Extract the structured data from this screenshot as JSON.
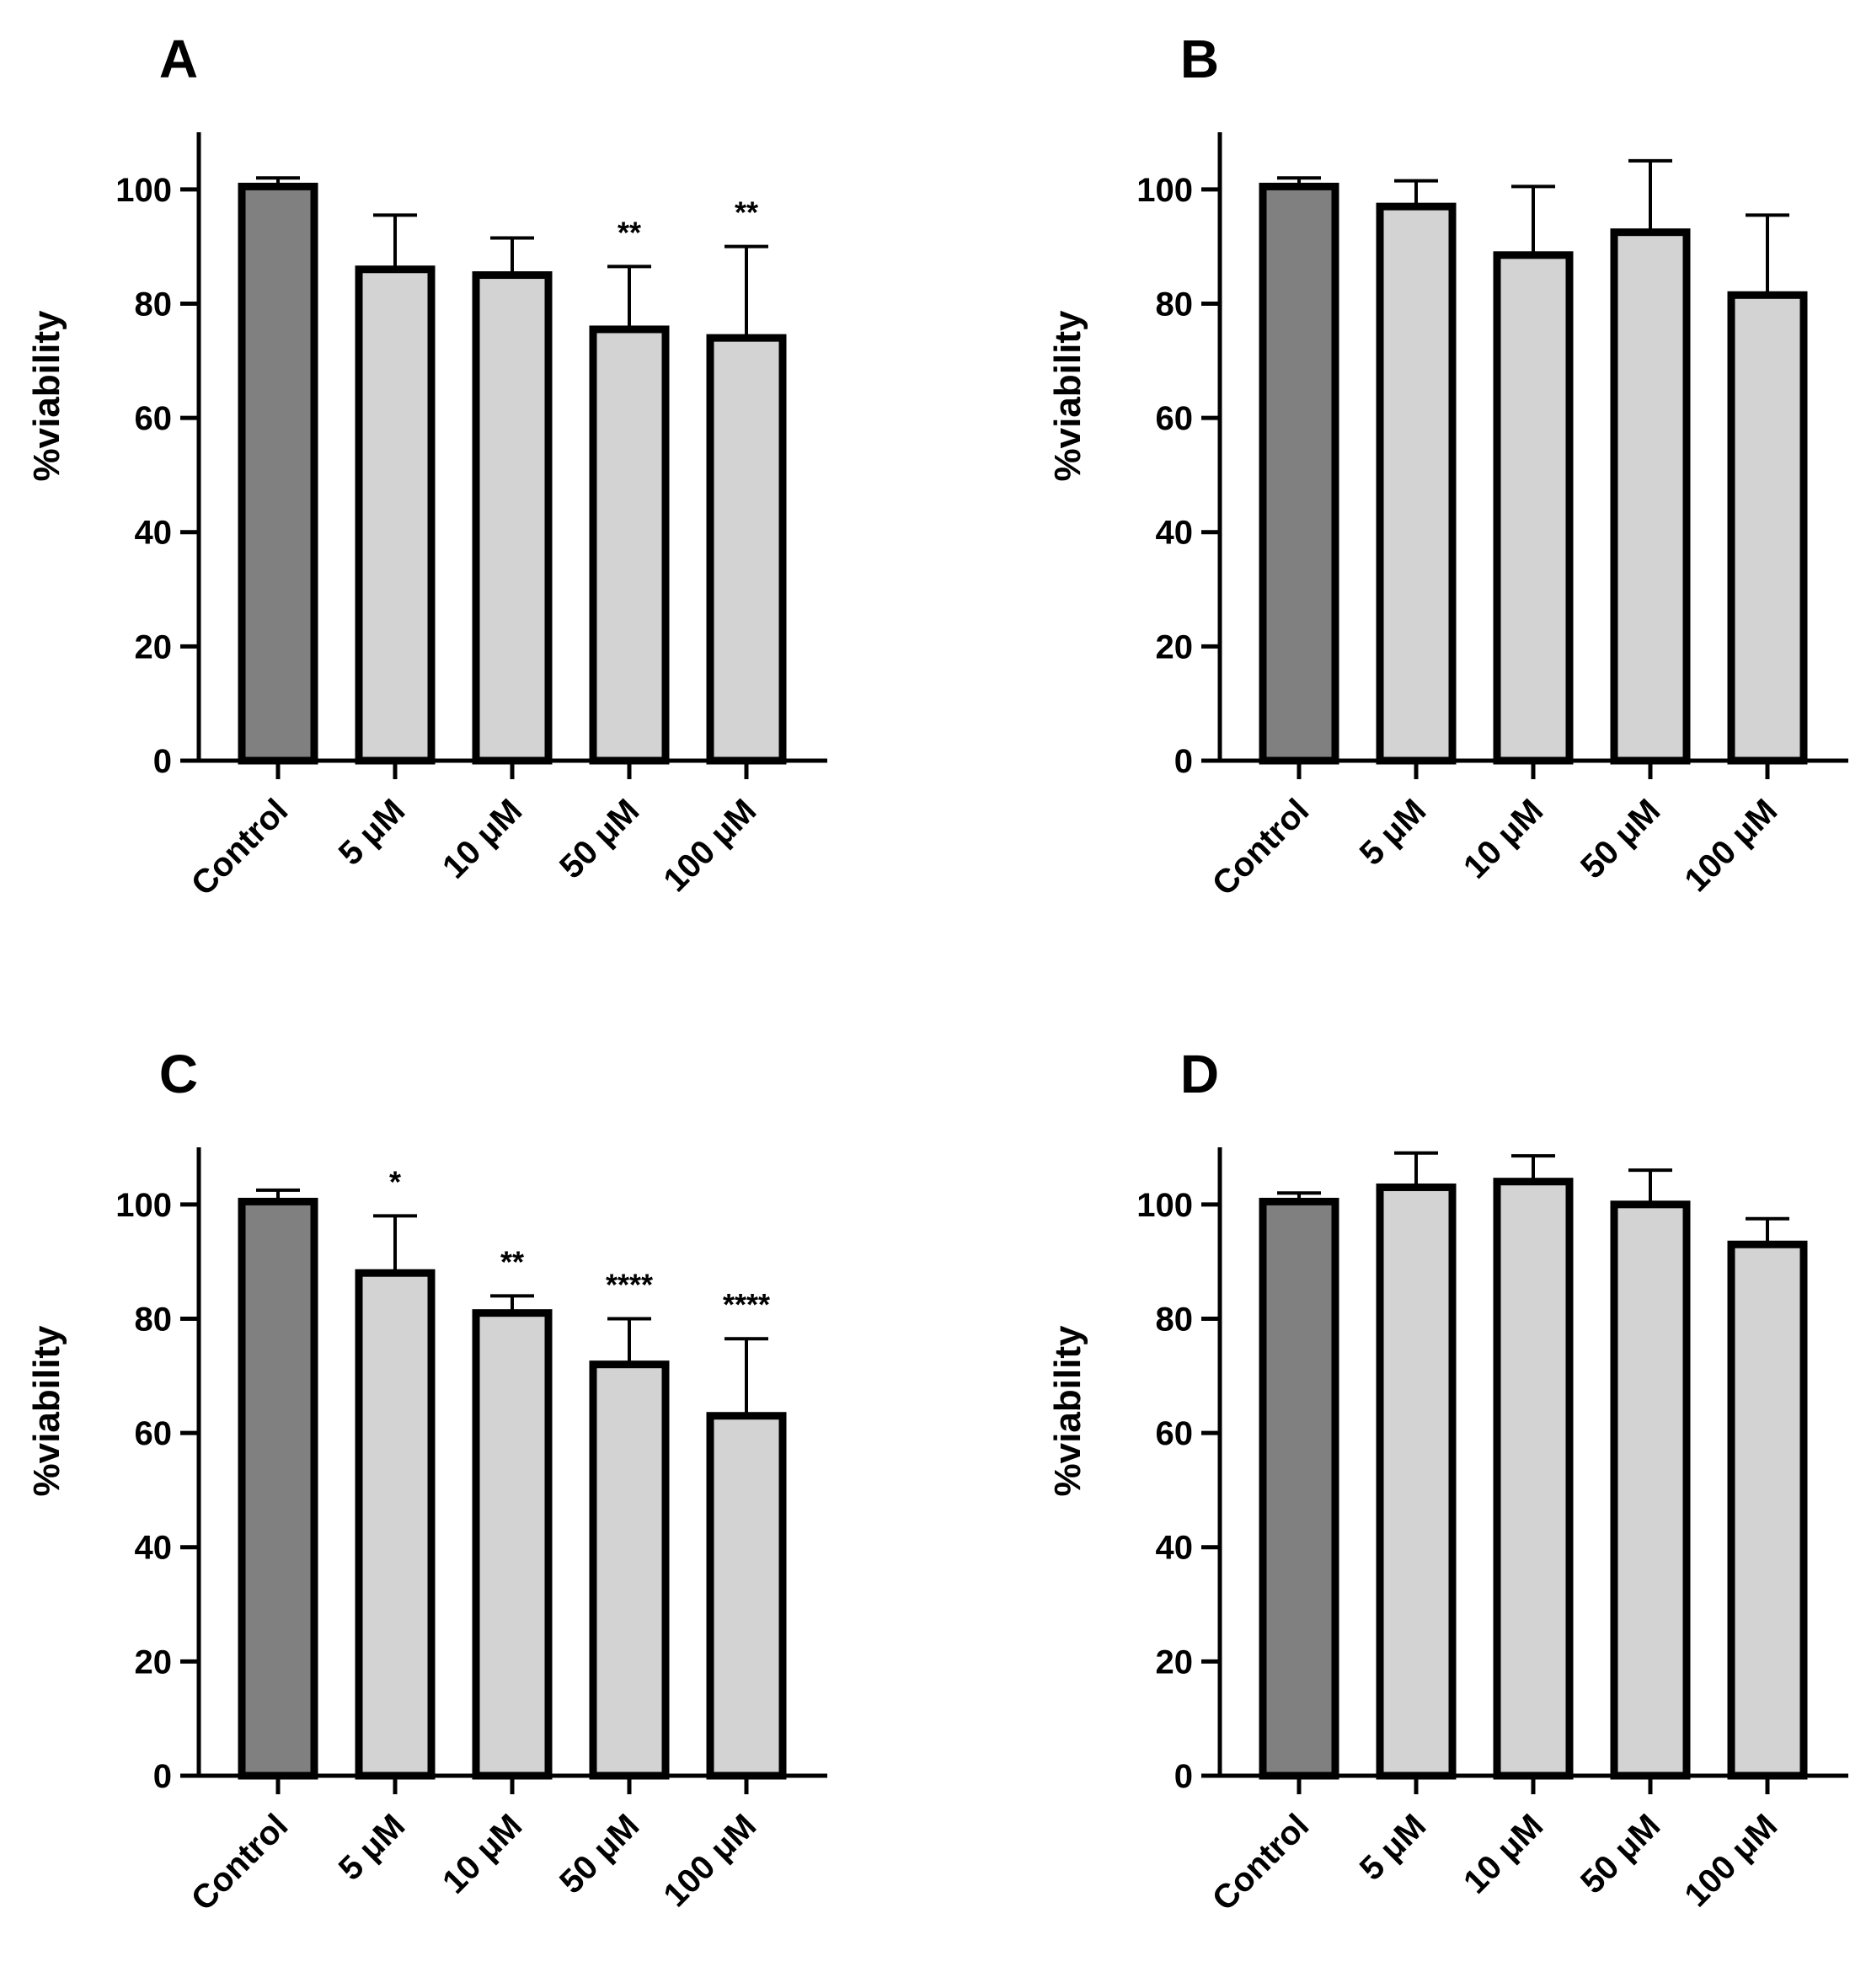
{
  "colors": {
    "control_fill": "#808080",
    "treatment_fill": "#d3d3d3",
    "stroke": "#000000"
  },
  "chart_data": [
    {
      "panel": "A",
      "type": "bar",
      "categories": [
        "Control",
        "5 μM",
        "10 μM",
        "50 μM",
        "100 μM"
      ],
      "values": [
        100.5,
        86,
        85,
        75.5,
        74
      ],
      "errors": [
        1.5,
        9.5,
        6.5,
        11,
        16
      ],
      "significance": [
        "",
        "",
        "",
        "**",
        "**"
      ],
      "ylabel": "%viability",
      "ylim": [
        0,
        110
      ],
      "yticks": [
        0,
        20,
        40,
        60,
        80,
        100
      ]
    },
    {
      "panel": "B",
      "type": "bar",
      "categories": [
        "Control",
        "5 μM",
        "10 μM",
        "50 μM",
        "100 μM"
      ],
      "values": [
        100.5,
        97,
        88.5,
        92.5,
        81.5
      ],
      "errors": [
        1.5,
        4.5,
        12,
        12.5,
        14
      ],
      "significance": [
        "",
        "",
        "",
        "",
        ""
      ],
      "ylabel": "%viability",
      "ylim": [
        0,
        110
      ],
      "yticks": [
        0,
        20,
        40,
        60,
        80,
        100
      ]
    },
    {
      "panel": "C",
      "type": "bar",
      "categories": [
        "Control",
        "5 μM",
        "10 μM",
        "50 μM",
        "100 μM"
      ],
      "values": [
        100.5,
        88,
        81,
        72,
        63
      ],
      "errors": [
        2,
        10,
        3,
        8,
        13.5
      ],
      "significance": [
        "",
        "*",
        "**",
        "****",
        "****"
      ],
      "ylabel": "%viability",
      "ylim": [
        0,
        110
      ],
      "yticks": [
        0,
        20,
        40,
        60,
        80,
        100
      ]
    },
    {
      "panel": "D",
      "type": "bar",
      "categories": [
        "Control",
        "5 μM",
        "10 μM",
        "50 μM",
        "100 μM"
      ],
      "values": [
        100.5,
        103,
        104,
        100,
        93
      ],
      "errors": [
        1.5,
        6,
        4.5,
        6,
        4.5
      ],
      "significance": [
        "",
        "",
        "",
        "",
        ""
      ],
      "ylabel": "%viability",
      "ylim": [
        0,
        110
      ],
      "yticks": [
        0,
        20,
        40,
        60,
        80,
        100
      ]
    }
  ]
}
